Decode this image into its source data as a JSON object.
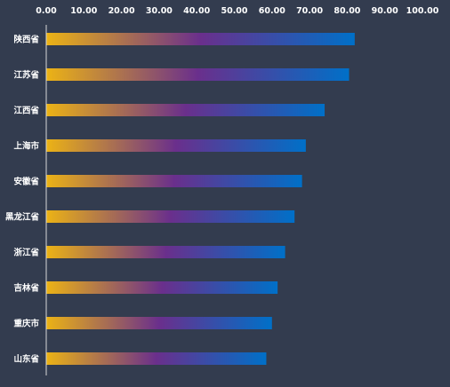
{
  "colors": {
    "background": "#333c4f",
    "axis": "#d9d9d9",
    "text": "#ffffff",
    "bar_gradient": [
      "#ecb315",
      "#6a2f8c",
      "#0070c8"
    ]
  },
  "chart_data": {
    "type": "bar",
    "orientation": "horizontal",
    "title": "",
    "xlabel": "",
    "ylabel": "",
    "xlim": [
      0,
      100
    ],
    "x_axis_position": "top",
    "x_ticks": [
      "0.00",
      "10.00",
      "20.00",
      "30.00",
      "40.00",
      "50.00",
      "60.00",
      "70.00",
      "80.00",
      "90.00",
      "100.00"
    ],
    "grid": false,
    "legend": "none",
    "categories": [
      "陕西省",
      "江苏省",
      "江西省",
      "上海市",
      "安徽省",
      "黑龙江省",
      "浙江省",
      "吉林省",
      "重庆市",
      "山东省"
    ],
    "values": [
      82,
      80.5,
      74,
      69,
      68,
      66,
      63.5,
      61.5,
      60,
      58.5
    ]
  }
}
